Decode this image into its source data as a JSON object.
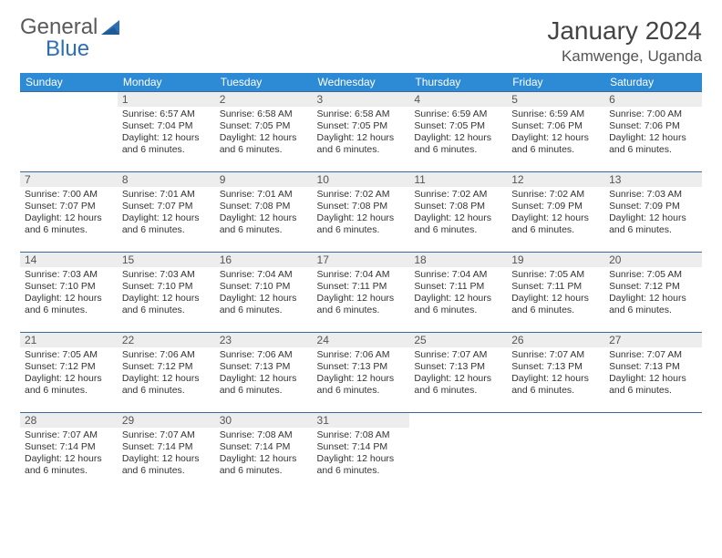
{
  "brand": {
    "name1": "General",
    "name2": "Blue"
  },
  "title": "January 2024",
  "location": "Kamwenge, Uganda",
  "colors": {
    "header_bg": "#2d8bd6",
    "header_text": "#ffffff",
    "daynum_bg": "#ededed",
    "border": "#3a6a9a",
    "text": "#333333",
    "brand_gray": "#5a5a5a",
    "brand_blue": "#2d6fb5"
  },
  "day_headers": [
    "Sunday",
    "Monday",
    "Tuesday",
    "Wednesday",
    "Thursday",
    "Friday",
    "Saturday"
  ],
  "weeks": [
    [
      {
        "n": "",
        "rise": "",
        "set": "",
        "day": ""
      },
      {
        "n": "1",
        "rise": "6:57 AM",
        "set": "7:04 PM",
        "day": "12 hours and 6 minutes."
      },
      {
        "n": "2",
        "rise": "6:58 AM",
        "set": "7:05 PM",
        "day": "12 hours and 6 minutes."
      },
      {
        "n": "3",
        "rise": "6:58 AM",
        "set": "7:05 PM",
        "day": "12 hours and 6 minutes."
      },
      {
        "n": "4",
        "rise": "6:59 AM",
        "set": "7:05 PM",
        "day": "12 hours and 6 minutes."
      },
      {
        "n": "5",
        "rise": "6:59 AM",
        "set": "7:06 PM",
        "day": "12 hours and 6 minutes."
      },
      {
        "n": "6",
        "rise": "7:00 AM",
        "set": "7:06 PM",
        "day": "12 hours and 6 minutes."
      }
    ],
    [
      {
        "n": "7",
        "rise": "7:00 AM",
        "set": "7:07 PM",
        "day": "12 hours and 6 minutes."
      },
      {
        "n": "8",
        "rise": "7:01 AM",
        "set": "7:07 PM",
        "day": "12 hours and 6 minutes."
      },
      {
        "n": "9",
        "rise": "7:01 AM",
        "set": "7:08 PM",
        "day": "12 hours and 6 minutes."
      },
      {
        "n": "10",
        "rise": "7:02 AM",
        "set": "7:08 PM",
        "day": "12 hours and 6 minutes."
      },
      {
        "n": "11",
        "rise": "7:02 AM",
        "set": "7:08 PM",
        "day": "12 hours and 6 minutes."
      },
      {
        "n": "12",
        "rise": "7:02 AM",
        "set": "7:09 PM",
        "day": "12 hours and 6 minutes."
      },
      {
        "n": "13",
        "rise": "7:03 AM",
        "set": "7:09 PM",
        "day": "12 hours and 6 minutes."
      }
    ],
    [
      {
        "n": "14",
        "rise": "7:03 AM",
        "set": "7:10 PM",
        "day": "12 hours and 6 minutes."
      },
      {
        "n": "15",
        "rise": "7:03 AM",
        "set": "7:10 PM",
        "day": "12 hours and 6 minutes."
      },
      {
        "n": "16",
        "rise": "7:04 AM",
        "set": "7:10 PM",
        "day": "12 hours and 6 minutes."
      },
      {
        "n": "17",
        "rise": "7:04 AM",
        "set": "7:11 PM",
        "day": "12 hours and 6 minutes."
      },
      {
        "n": "18",
        "rise": "7:04 AM",
        "set": "7:11 PM",
        "day": "12 hours and 6 minutes."
      },
      {
        "n": "19",
        "rise": "7:05 AM",
        "set": "7:11 PM",
        "day": "12 hours and 6 minutes."
      },
      {
        "n": "20",
        "rise": "7:05 AM",
        "set": "7:12 PM",
        "day": "12 hours and 6 minutes."
      }
    ],
    [
      {
        "n": "21",
        "rise": "7:05 AM",
        "set": "7:12 PM",
        "day": "12 hours and 6 minutes."
      },
      {
        "n": "22",
        "rise": "7:06 AM",
        "set": "7:12 PM",
        "day": "12 hours and 6 minutes."
      },
      {
        "n": "23",
        "rise": "7:06 AM",
        "set": "7:13 PM",
        "day": "12 hours and 6 minutes."
      },
      {
        "n": "24",
        "rise": "7:06 AM",
        "set": "7:13 PM",
        "day": "12 hours and 6 minutes."
      },
      {
        "n": "25",
        "rise": "7:07 AM",
        "set": "7:13 PM",
        "day": "12 hours and 6 minutes."
      },
      {
        "n": "26",
        "rise": "7:07 AM",
        "set": "7:13 PM",
        "day": "12 hours and 6 minutes."
      },
      {
        "n": "27",
        "rise": "7:07 AM",
        "set": "7:13 PM",
        "day": "12 hours and 6 minutes."
      }
    ],
    [
      {
        "n": "28",
        "rise": "7:07 AM",
        "set": "7:14 PM",
        "day": "12 hours and 6 minutes."
      },
      {
        "n": "29",
        "rise": "7:07 AM",
        "set": "7:14 PM",
        "day": "12 hours and 6 minutes."
      },
      {
        "n": "30",
        "rise": "7:08 AM",
        "set": "7:14 PM",
        "day": "12 hours and 6 minutes."
      },
      {
        "n": "31",
        "rise": "7:08 AM",
        "set": "7:14 PM",
        "day": "12 hours and 6 minutes."
      },
      {
        "n": "",
        "rise": "",
        "set": "",
        "day": ""
      },
      {
        "n": "",
        "rise": "",
        "set": "",
        "day": ""
      },
      {
        "n": "",
        "rise": "",
        "set": "",
        "day": ""
      }
    ]
  ],
  "labels": {
    "sunrise": "Sunrise: ",
    "sunset": "Sunset: ",
    "daylight": "Daylight: "
  }
}
